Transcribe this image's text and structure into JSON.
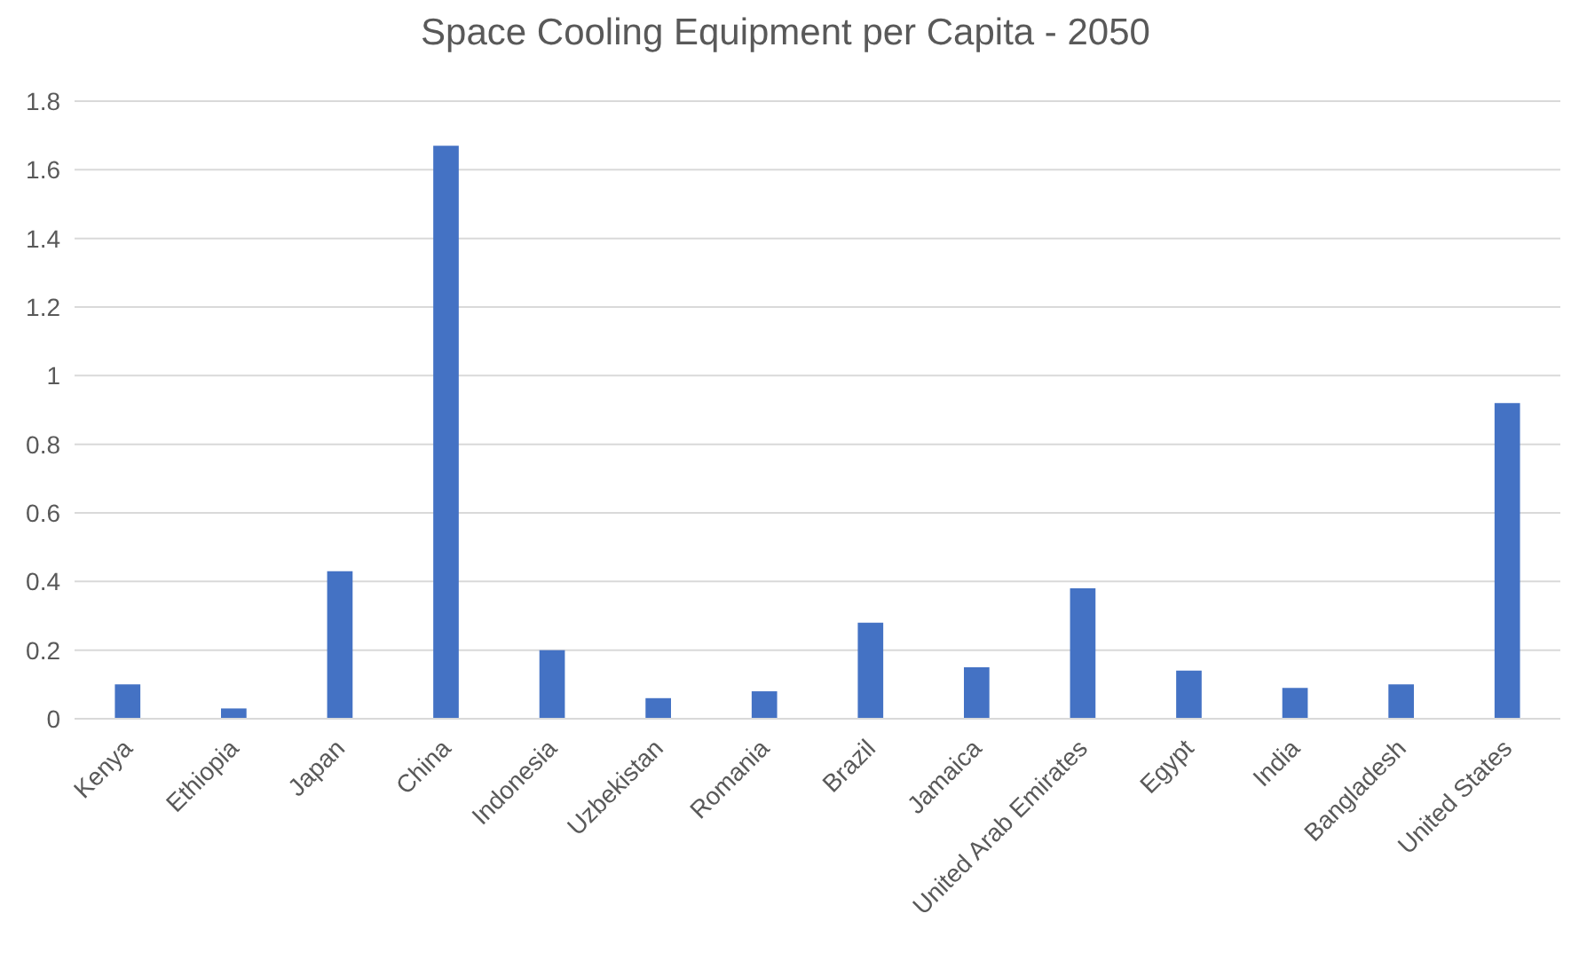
{
  "chart_data": {
    "type": "bar",
    "title": "Space Cooling Equipment per Capita - 2050",
    "categories": [
      "Kenya",
      "Ethiopia",
      "Japan",
      "China",
      "Indonesia",
      "Uzbekistan",
      "Romania",
      "Brazil",
      "Jamaica",
      "United Arab Emirates",
      "Egypt",
      "India",
      "Bangladesh",
      "United States"
    ],
    "values": [
      0.1,
      0.03,
      0.43,
      1.67,
      0.2,
      0.06,
      0.08,
      0.28,
      0.15,
      0.38,
      0.14,
      0.09,
      0.1,
      0.92
    ],
    "color": "#4472c4",
    "ylim": [
      0,
      1.8
    ],
    "yticks": [
      0,
      0.2,
      0.4,
      0.6,
      0.8,
      1,
      1.2,
      1.4,
      1.6,
      1.8
    ],
    "grid": "y"
  }
}
